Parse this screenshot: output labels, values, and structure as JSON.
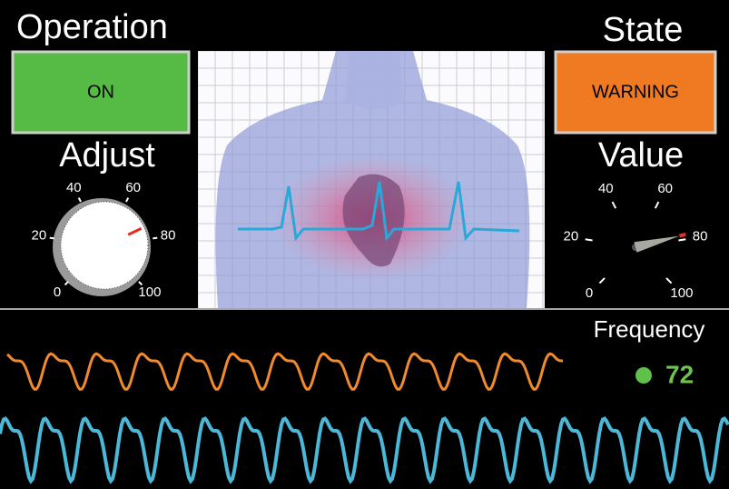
{
  "operation": {
    "title": "Operation",
    "status": "ON"
  },
  "state": {
    "title": "State",
    "status": "WARNING"
  },
  "adjust": {
    "title": "Adjust",
    "range": [
      0,
      100
    ],
    "ticks": [
      0,
      20,
      40,
      60,
      80,
      100
    ],
    "value": 74
  },
  "value_gauge": {
    "title": "Value",
    "range": [
      0,
      100
    ],
    "ticks": [
      0,
      20,
      40,
      60,
      80,
      100
    ],
    "value": 78
  },
  "frequency": {
    "title": "Frequency",
    "value": 72
  }
}
